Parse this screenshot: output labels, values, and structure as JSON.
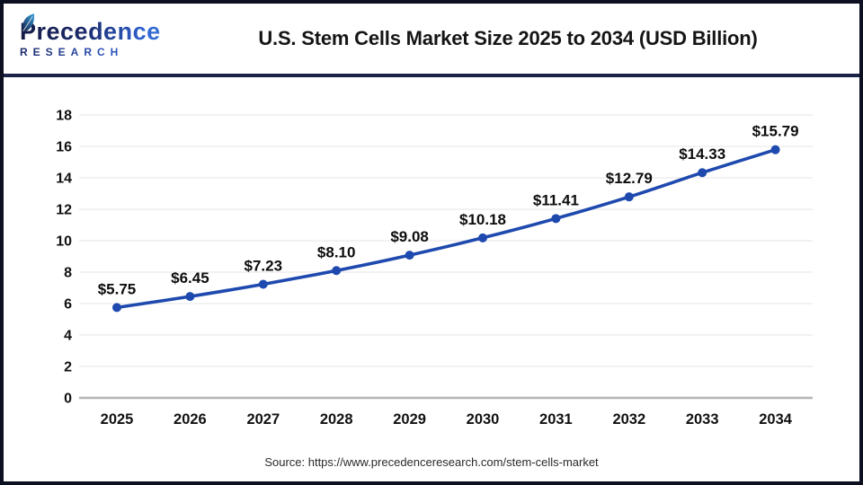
{
  "header": {
    "logo": {
      "line1": "Precedence",
      "line2": "RESEARCH",
      "brand_navy": "#1b2a6b",
      "brand_blue": "#3f86e0"
    },
    "title": "U.S. Stem Cells Market Size 2025 to 2034 (USD Billion)"
  },
  "chart_data": {
    "type": "line",
    "title": "U.S. Stem Cells Market Size 2025 to 2034 (USD Billion)",
    "categories": [
      "2025",
      "2026",
      "2027",
      "2028",
      "2029",
      "2030",
      "2031",
      "2032",
      "2033",
      "2034"
    ],
    "values": [
      5.75,
      6.45,
      7.23,
      8.1,
      9.08,
      10.18,
      11.41,
      12.79,
      14.33,
      15.79
    ],
    "point_labels": [
      "$5.75",
      "$6.45",
      "$7.23",
      "$8.10",
      "$9.08",
      "$10.18",
      "$11.41",
      "$12.79",
      "$14.33",
      "$15.79"
    ],
    "xlabel": "",
    "ylabel": "",
    "ylim": [
      0,
      18
    ],
    "yticks": [
      0,
      2,
      4,
      6,
      8,
      10,
      12,
      14,
      16,
      18
    ],
    "grid": true,
    "legend": "none",
    "line_color": "#1e49ae",
    "grid_color": "#ebebeb",
    "axis_line_color": "#b5b5b5",
    "tick_label_color": "#111111",
    "data_label_color": "#0d0d0d"
  },
  "footer": {
    "source": "Source: https://www.precedenceresearch.com/stem-cells-market"
  }
}
